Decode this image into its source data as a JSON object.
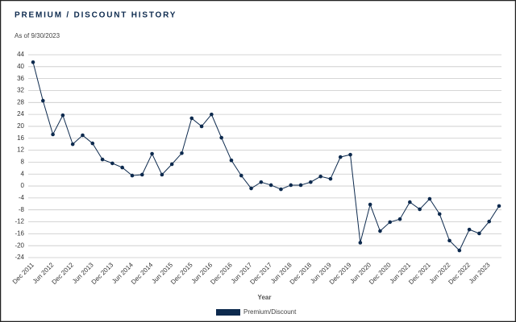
{
  "chart_data": {
    "type": "line",
    "title": "PREMIUM / DISCOUNT HISTORY",
    "subtitle": "As of 9/30/2023",
    "x_label": "Year",
    "categories": [
      "Dec 2011",
      null,
      "Jun 2012",
      null,
      "Dec 2012",
      null,
      "Jun 2013",
      null,
      "Dec 2013",
      null,
      "Jun 2014",
      null,
      "Dec 2014",
      null,
      "Jun 2015",
      null,
      "Dec 2015",
      null,
      "Jun 2016",
      null,
      "Dec 2016",
      null,
      "Jun 2017",
      null,
      "Dec 2017",
      null,
      "Jun 2018",
      null,
      "Dec 2018",
      null,
      "Jun 2019",
      null,
      "Dec 2019",
      null,
      "Jun 2020",
      null,
      "Dec 2020",
      null,
      "Jun 2021",
      null,
      "Dec 2021",
      null,
      "Jun 2022",
      null,
      "Dec 2022",
      null,
      "Jun 2023",
      null
    ],
    "series": [
      {
        "name": "Premium/Discount",
        "color": "#0d2a4e",
        "values": [
          41.5,
          28.6,
          17.3,
          23.7,
          14,
          17,
          14.3,
          8.9,
          7.6,
          6.2,
          3.5,
          3.8,
          10.8,
          3.8,
          7.3,
          11,
          22.7,
          20,
          24,
          16.2,
          8.6,
          3.5,
          -0.8,
          1.3,
          0.3,
          -1.1,
          0.3,
          0.3,
          1.3,
          3.2,
          2.4,
          9.7,
          10.5,
          -19,
          -6.2,
          -15.1,
          -12.1,
          -11.1,
          -5.4,
          -7.8,
          -4.3,
          -9.4,
          -18.3,
          -21.6,
          -14.6,
          -15.9,
          -11.9,
          -6.7
        ]
      }
    ],
    "ylim": [
      -24,
      44
    ],
    "yticks": [
      -24,
      -20,
      -16,
      -12,
      -8,
      -4,
      0,
      4,
      8,
      12,
      16,
      20,
      24,
      28,
      32,
      36,
      40,
      44
    ],
    "grid": true,
    "legend": "bottom"
  }
}
